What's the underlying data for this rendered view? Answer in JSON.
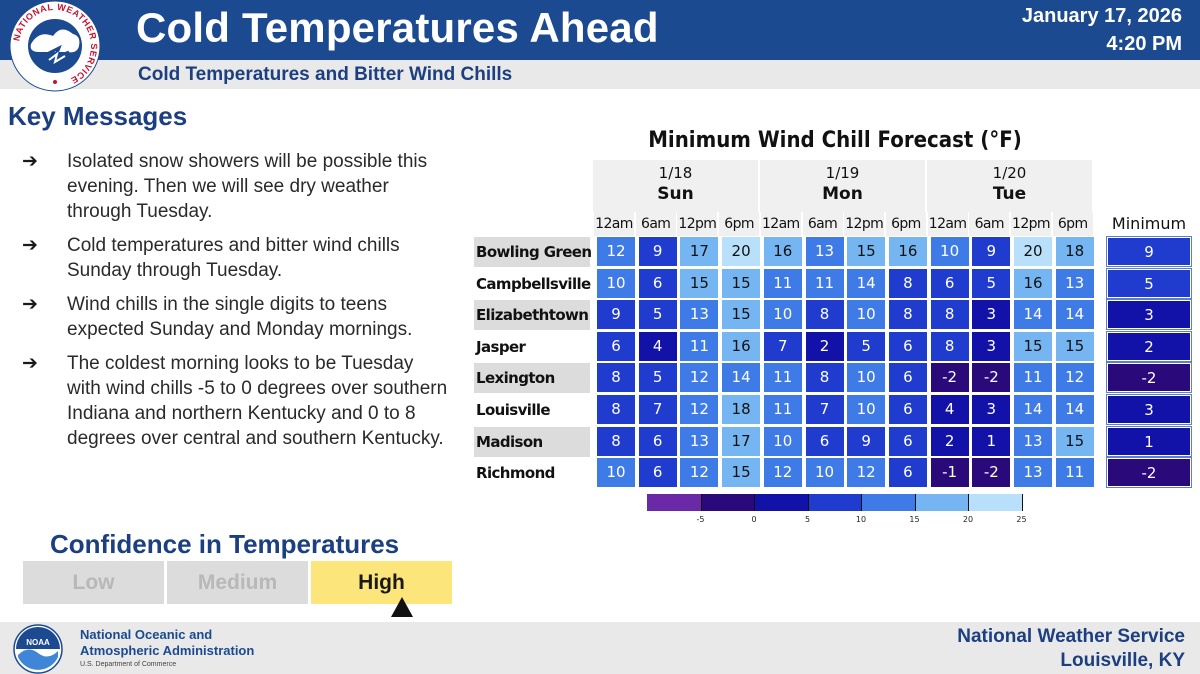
{
  "header": {
    "title": "Cold Temperatures Ahead",
    "subtitle": "Cold Temperatures and Bitter Wind Chills",
    "date": "January 17, 2026",
    "time": "4:20 PM",
    "logo_text": "NATIONAL WEATHER SERVICE"
  },
  "key_messages": {
    "title": "Key Messages",
    "arrow": "➔",
    "items": [
      "Isolated snow showers will be possible this evening. Then we will see dry weather through Tuesday.",
      "Cold temperatures and bitter wind chills Sunday through Tuesday.",
      "Wind chills in the single digits to teens expected Sunday and Monday mornings.",
      "The coldest morning looks to be Tuesday with wind chills -5 to 0 degrees over southern Indiana and northern Kentucky and 0 to 8 degrees over central and southern Kentucky."
    ]
  },
  "confidence": {
    "title": "Confidence in Temperatures",
    "levels": [
      "Low",
      "Medium",
      "High"
    ],
    "selected": "High"
  },
  "wind_chill_table": {
    "title": "Minimum Wind Chill Forecast (°F)",
    "days": [
      {
        "date": "1/18",
        "name": "Sun"
      },
      {
        "date": "1/19",
        "name": "Mon"
      },
      {
        "date": "1/20",
        "name": "Tue"
      }
    ],
    "hours": [
      "12am",
      "6am",
      "12pm",
      "6pm",
      "12am",
      "6am",
      "12pm",
      "6pm",
      "12am",
      "6am",
      "12pm",
      "6pm"
    ],
    "min_header": "Minimum",
    "rows": [
      {
        "location": "Bowling Green",
        "values": [
          12,
          9,
          17,
          20,
          16,
          13,
          15,
          16,
          10,
          9,
          20,
          18
        ],
        "minimum": 9
      },
      {
        "location": "Campbellsville",
        "values": [
          10,
          6,
          15,
          15,
          11,
          11,
          14,
          8,
          6,
          5,
          16,
          13
        ],
        "minimum": 5
      },
      {
        "location": "Elizabethtown",
        "values": [
          9,
          5,
          13,
          15,
          10,
          8,
          10,
          8,
          8,
          3,
          14,
          14
        ],
        "minimum": 3
      },
      {
        "location": "Jasper",
        "values": [
          6,
          4,
          11,
          16,
          7,
          2,
          5,
          6,
          8,
          3,
          15,
          15
        ],
        "minimum": 2
      },
      {
        "location": "Lexington",
        "values": [
          8,
          5,
          12,
          14,
          11,
          8,
          10,
          6,
          -2,
          -2,
          11,
          12
        ],
        "minimum": -2
      },
      {
        "location": "Louisville",
        "values": [
          8,
          7,
          12,
          18,
          11,
          7,
          10,
          6,
          4,
          3,
          14,
          14
        ],
        "minimum": 3
      },
      {
        "location": "Madison",
        "values": [
          8,
          6,
          13,
          17,
          10,
          6,
          9,
          6,
          2,
          1,
          13,
          15
        ],
        "minimum": 1
      },
      {
        "location": "Richmond",
        "values": [
          10,
          6,
          12,
          15,
          12,
          10,
          12,
          6,
          -1,
          -2,
          13,
          11
        ],
        "minimum": -2
      }
    ],
    "colorbar": {
      "ticks": [
        "-5",
        "0",
        "5",
        "10",
        "15",
        "20",
        "25"
      ],
      "bands": [
        {
          "from": -10,
          "to": -5,
          "color": "#6a2aa8"
        },
        {
          "from": -5,
          "to": 0,
          "color": "#2a0a7a"
        },
        {
          "from": 0,
          "to": 5,
          "color": "#1212a8"
        },
        {
          "from": 5,
          "to": 10,
          "color": "#1f3ccf"
        },
        {
          "from": 10,
          "to": 15,
          "color": "#3f7be6"
        },
        {
          "from": 15,
          "to": 20,
          "color": "#74b5f2"
        },
        {
          "from": 20,
          "to": 25,
          "color": "#b8e0fb"
        }
      ]
    }
  },
  "footer": {
    "org_line1": "National Oceanic and",
    "org_line2": "Atmospheric Administration",
    "dept": "U.S. Department of Commerce",
    "noaa_logo_text": "NOAA",
    "office_line1": "National Weather Service",
    "office_line2": "Louisville, KY"
  }
}
